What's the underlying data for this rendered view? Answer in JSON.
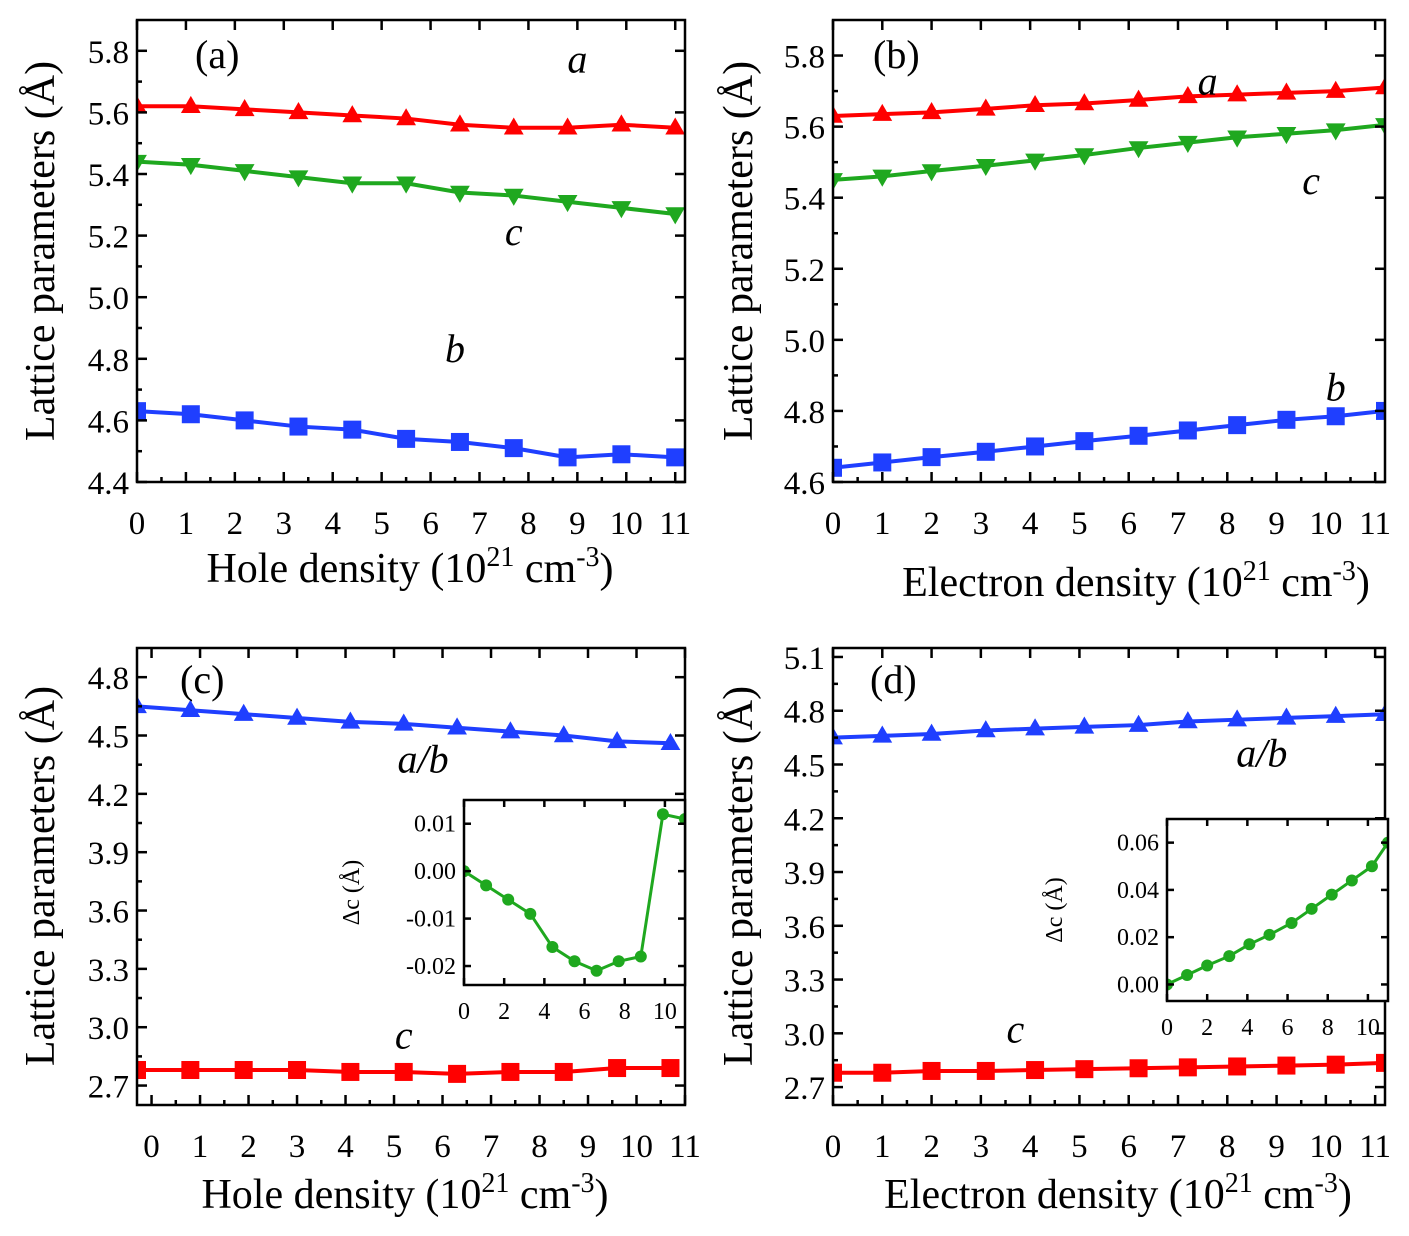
{
  "colors": {
    "red": "#ff0000",
    "green": "#1fa81f",
    "blue": "#1f3fff",
    "axis": "#000000",
    "background": "#ffffff"
  },
  "chart_data": [
    {
      "panel": "(a)",
      "type": "line",
      "xlabel": "Hole density (10^21 cm^-3)",
      "xlabel_parts": {
        "base": "Hole density (10",
        "sup1": "21",
        "mid": " cm",
        "sup2": "-3",
        "end": ")"
      },
      "ylabel": "Lattice parameters (Å)",
      "xlim": [
        0,
        11.2
      ],
      "ylim": [
        4.4,
        5.9
      ],
      "xticks": [
        0,
        1,
        2,
        3,
        4,
        5,
        6,
        7,
        8,
        9,
        10,
        11
      ],
      "yticks": [
        4.4,
        4.6,
        4.8,
        5.0,
        5.2,
        5.4,
        5.6,
        5.8
      ],
      "series": [
        {
          "name": "a",
          "color": "red",
          "marker": "triangle-up",
          "x": [
            0,
            1.1,
            2.2,
            3.3,
            4.4,
            5.5,
            6.6,
            7.7,
            8.8,
            9.9,
            11.0
          ],
          "y": [
            5.62,
            5.62,
            5.61,
            5.6,
            5.59,
            5.58,
            5.56,
            5.55,
            5.55,
            5.56,
            5.55
          ]
        },
        {
          "name": "c",
          "color": "green",
          "marker": "triangle-down",
          "x": [
            0,
            1.1,
            2.2,
            3.3,
            4.4,
            5.5,
            6.6,
            7.7,
            8.8,
            9.9,
            11.0
          ],
          "y": [
            5.44,
            5.43,
            5.41,
            5.39,
            5.37,
            5.37,
            5.34,
            5.33,
            5.31,
            5.29,
            5.27
          ]
        },
        {
          "name": "b",
          "color": "blue",
          "marker": "square",
          "x": [
            0,
            1.1,
            2.2,
            3.3,
            4.4,
            5.5,
            6.6,
            7.7,
            8.8,
            9.9,
            11.0
          ],
          "y": [
            4.63,
            4.62,
            4.6,
            4.58,
            4.57,
            4.54,
            4.53,
            4.51,
            4.48,
            4.49,
            4.48
          ]
        }
      ],
      "labels": [
        {
          "text": "a",
          "x": 9.0,
          "y": 5.73
        },
        {
          "text": "c",
          "x": 7.7,
          "y": 5.17
        },
        {
          "text": "b",
          "x": 6.5,
          "y": 4.79
        }
      ]
    },
    {
      "panel": "(b)",
      "type": "line",
      "xlabel": "Electron density (10^21 cm^-3)",
      "xlabel_parts": {
        "base": "Electron density (10",
        "sup1": "21",
        "mid": " cm",
        "sup2": "-3",
        "end": ")"
      },
      "ylabel": "Lattice parameters (Å)",
      "xlim": [
        0,
        11.2
      ],
      "ylim": [
        4.6,
        5.9
      ],
      "xticks": [
        0,
        1,
        2,
        3,
        4,
        5,
        6,
        7,
        8,
        9,
        10,
        11
      ],
      "yticks": [
        4.6,
        4.8,
        5.0,
        5.2,
        5.4,
        5.6,
        5.8
      ],
      "series": [
        {
          "name": "a",
          "color": "red",
          "marker": "triangle-up",
          "x": [
            0,
            1.0,
            2.0,
            3.1,
            4.1,
            5.1,
            6.2,
            7.2,
            8.2,
            9.2,
            10.2,
            11.2
          ],
          "y": [
            5.63,
            5.635,
            5.64,
            5.65,
            5.66,
            5.665,
            5.675,
            5.685,
            5.69,
            5.695,
            5.7,
            5.71
          ]
        },
        {
          "name": "c",
          "color": "green",
          "marker": "triangle-down",
          "x": [
            0,
            1.0,
            2.0,
            3.1,
            4.1,
            5.1,
            6.2,
            7.2,
            8.2,
            9.2,
            10.2,
            11.2
          ],
          "y": [
            5.45,
            5.46,
            5.475,
            5.49,
            5.505,
            5.52,
            5.54,
            5.555,
            5.57,
            5.58,
            5.59,
            5.605
          ]
        },
        {
          "name": "b",
          "color": "blue",
          "marker": "square",
          "x": [
            0,
            1.0,
            2.0,
            3.1,
            4.1,
            5.1,
            6.2,
            7.2,
            8.2,
            9.2,
            10.2,
            11.2
          ],
          "y": [
            4.64,
            4.655,
            4.67,
            4.685,
            4.7,
            4.715,
            4.73,
            4.745,
            4.76,
            4.775,
            4.785,
            4.8
          ]
        }
      ],
      "labels": [
        {
          "text": "a",
          "x": 7.6,
          "y": 5.69
        },
        {
          "text": "c",
          "x": 9.7,
          "y": 5.41
        },
        {
          "text": "b",
          "x": 10.2,
          "y": 4.83
        }
      ]
    },
    {
      "panel": "(c)",
      "type": "line",
      "xlabel": "Hole density (10^21 cm^-3)",
      "xlabel_parts": {
        "base": "Hole density (10",
        "sup1": "21",
        "mid": " cm",
        "sup2": "-3",
        "end": ")"
      },
      "ylabel": "Lattice parameters (Å)",
      "xlim": [
        -0.3,
        11.0
      ],
      "ylim": [
        2.6,
        4.95
      ],
      "xticks": [
        0,
        1,
        2,
        3,
        4,
        5,
        6,
        7,
        8,
        9,
        10,
        11
      ],
      "yticks": [
        2.7,
        3.0,
        3.3,
        3.6,
        3.9,
        4.2,
        4.5,
        4.8
      ],
      "series": [
        {
          "name": "a/b",
          "color": "blue",
          "marker": "triangle-up",
          "x": [
            -0.3,
            0.8,
            1.9,
            3.0,
            4.1,
            5.2,
            6.3,
            7.4,
            8.5,
            9.6,
            10.7
          ],
          "y": [
            4.65,
            4.63,
            4.61,
            4.59,
            4.57,
            4.56,
            4.54,
            4.52,
            4.5,
            4.47,
            4.46
          ]
        },
        {
          "name": "c",
          "color": "red",
          "marker": "square",
          "x": [
            -0.3,
            0.8,
            1.9,
            3.0,
            4.1,
            5.2,
            6.3,
            7.4,
            8.5,
            9.6,
            10.7
          ],
          "y": [
            2.78,
            2.78,
            2.78,
            2.78,
            2.77,
            2.77,
            2.76,
            2.77,
            2.77,
            2.79,
            2.79
          ]
        }
      ],
      "labels": [
        {
          "text": "a/b",
          "x": 5.6,
          "y": 4.31
        },
        {
          "text": "c",
          "x": 5.2,
          "y": 2.89
        }
      ],
      "inset": {
        "type": "line",
        "ylabel": "Δc (Å)",
        "xlim": [
          0,
          11
        ],
        "ylim": [
          -0.024,
          0.015
        ],
        "xticks": [
          0,
          2,
          4,
          6,
          8,
          10
        ],
        "yticks": [
          -0.02,
          -0.01,
          0.0,
          0.01
        ],
        "ytick_labels": [
          "-0.02",
          "-0.01",
          "0.00",
          "0.01"
        ],
        "series": [
          {
            "color": "green",
            "marker": "circle",
            "x": [
              0,
              1.1,
              2.2,
              3.3,
              4.4,
              5.5,
              6.6,
              7.7,
              8.8,
              9.9,
              11.0
            ],
            "y": [
              0.0,
              -0.003,
              -0.006,
              -0.009,
              -0.016,
              -0.019,
              -0.021,
              -0.019,
              -0.018,
              0.012,
              0.011
            ]
          }
        ]
      }
    },
    {
      "panel": "(d)",
      "type": "line",
      "xlabel": "Electron density (10^21 cm^-3)",
      "xlabel_parts": {
        "base": "Electron density (10",
        "sup1": "21",
        "mid": " cm",
        "sup2": "-3",
        "end": ")"
      },
      "ylabel": "Lattice parameters (Å)",
      "xlim": [
        0,
        11.2
      ],
      "ylim": [
        2.6,
        5.15
      ],
      "xticks": [
        0,
        1,
        2,
        3,
        4,
        5,
        6,
        7,
        8,
        9,
        10,
        11
      ],
      "yticks": [
        2.7,
        3.0,
        3.3,
        3.6,
        3.9,
        4.2,
        4.5,
        4.8,
        5.1
      ],
      "series": [
        {
          "name": "a/b",
          "color": "blue",
          "marker": "triangle-up",
          "x": [
            0,
            1.0,
            2.0,
            3.1,
            4.1,
            5.1,
            6.2,
            7.2,
            8.2,
            9.2,
            10.2,
            11.2
          ],
          "y": [
            4.65,
            4.66,
            4.67,
            4.69,
            4.7,
            4.71,
            4.72,
            4.74,
            4.75,
            4.76,
            4.77,
            4.78
          ]
        },
        {
          "name": "c",
          "color": "red",
          "marker": "square",
          "x": [
            0,
            1.0,
            2.0,
            3.1,
            4.1,
            5.1,
            6.2,
            7.2,
            8.2,
            9.2,
            10.2,
            11.2
          ],
          "y": [
            2.78,
            2.78,
            2.79,
            2.79,
            2.795,
            2.8,
            2.805,
            2.81,
            2.815,
            2.82,
            2.825,
            2.835
          ]
        }
      ],
      "labels": [
        {
          "text": "a/b",
          "x": 8.7,
          "y": 4.49
        },
        {
          "text": "c",
          "x": 3.7,
          "y": 2.95
        }
      ],
      "inset": {
        "type": "line",
        "ylabel": "Δc (Å)",
        "xlim": [
          0,
          11
        ],
        "ylim": [
          -0.007,
          0.07
        ],
        "xticks": [
          0,
          2,
          4,
          6,
          8,
          10
        ],
        "yticks": [
          0.0,
          0.02,
          0.04,
          0.06
        ],
        "ytick_labels": [
          "0.00",
          "0.02",
          "0.04",
          "0.06"
        ],
        "series": [
          {
            "color": "green",
            "marker": "circle",
            "x": [
              0,
              1.0,
              2.0,
              3.1,
              4.1,
              5.1,
              6.2,
              7.2,
              8.2,
              9.2,
              10.2,
              11.0
            ],
            "y": [
              0.0,
              0.004,
              0.008,
              0.012,
              0.017,
              0.021,
              0.026,
              0.032,
              0.038,
              0.044,
              0.05,
              0.06
            ]
          }
        ]
      }
    }
  ]
}
